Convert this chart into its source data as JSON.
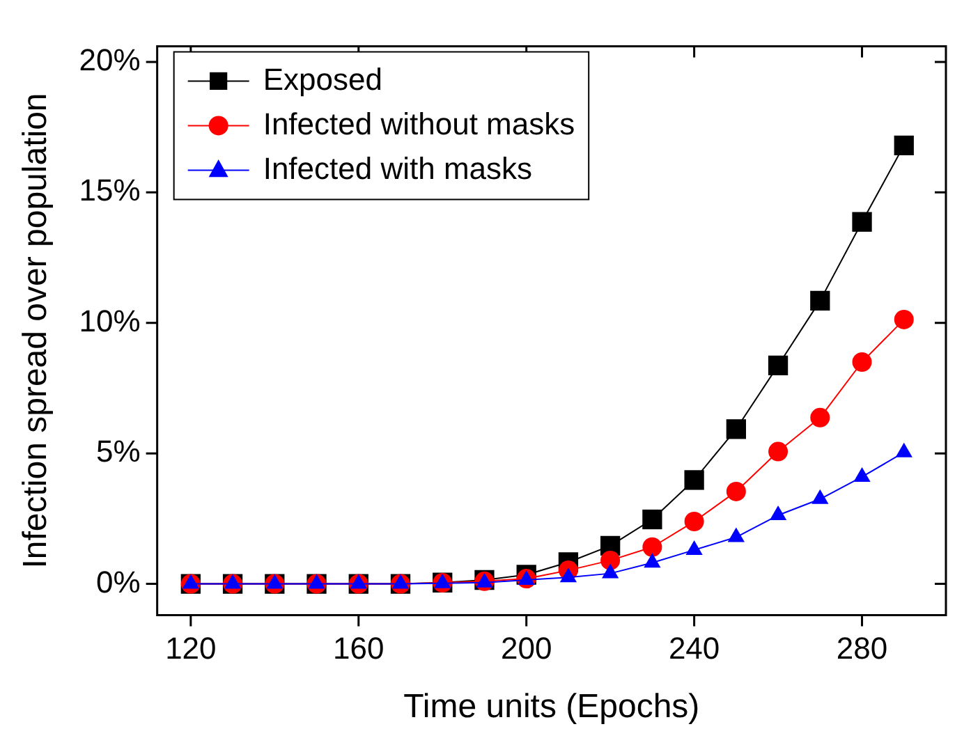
{
  "chart_data": {
    "type": "line",
    "xlabel": "Time units (Epochs)",
    "ylabel": "Infection spread over population",
    "x": [
      120,
      130,
      140,
      150,
      160,
      170,
      180,
      190,
      200,
      210,
      220,
      230,
      240,
      250,
      260,
      270,
      280,
      290
    ],
    "xlim": [
      112,
      300
    ],
    "xticks": [
      120,
      160,
      200,
      240,
      280
    ],
    "ylim": [
      -1.2,
      20.6
    ],
    "yticks": [
      {
        "value": 0,
        "label": "0%"
      },
      {
        "value": 5,
        "label": "5%"
      },
      {
        "value": 10,
        "label": "10%"
      },
      {
        "value": 15,
        "label": "15%"
      },
      {
        "value": 20,
        "label": "20%"
      }
    ],
    "legend": "top left",
    "grid": false,
    "series": [
      {
        "name": "Exposed",
        "color": "#000000",
        "marker": "square",
        "values": [
          0,
          0,
          0,
          0,
          0,
          0,
          0.05,
          0.15,
          0.35,
          0.83,
          1.46,
          2.47,
          3.98,
          5.93,
          8.37,
          10.85,
          13.87,
          16.8
        ]
      },
      {
        "name": "Infected without masks",
        "color": "#ff0000",
        "marker": "circle",
        "values": [
          0,
          0,
          0,
          0,
          0,
          0,
          0.04,
          0.1,
          0.2,
          0.52,
          0.9,
          1.41,
          2.39,
          3.54,
          5.07,
          6.37,
          8.5,
          10.13
        ]
      },
      {
        "name": "Infected with masks",
        "color": "#0000ff",
        "marker": "triangle",
        "values": [
          0,
          0,
          0,
          0,
          0,
          0,
          0.02,
          0.05,
          0.15,
          0.25,
          0.4,
          0.81,
          1.3,
          1.79,
          2.63,
          3.25,
          4.1,
          5.04
        ]
      }
    ]
  }
}
